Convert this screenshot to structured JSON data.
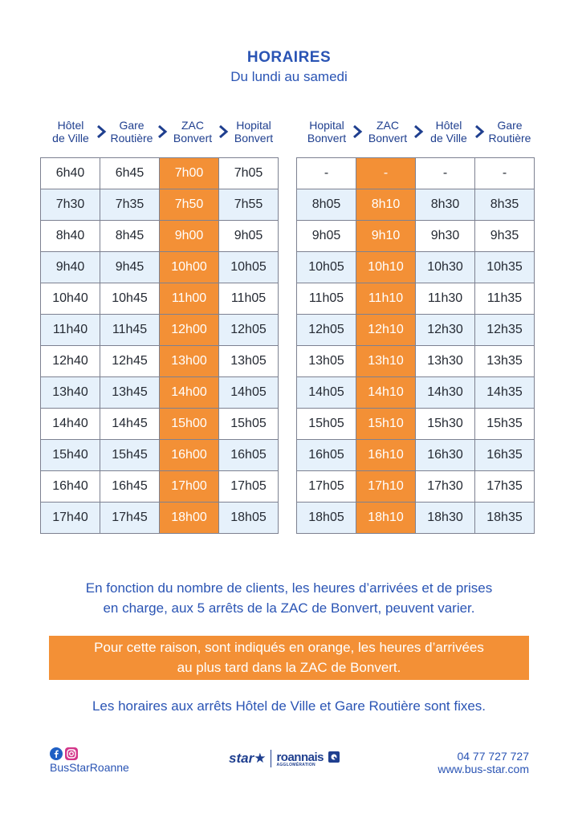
{
  "header": {
    "title": "HORAIRES",
    "subtitle": "Du lundi au samedi"
  },
  "left_table": {
    "stops": [
      [
        "Hôtel",
        "de Ville"
      ],
      [
        "Gare",
        "Routière"
      ],
      [
        "ZAC",
        "Bonvert"
      ],
      [
        "Hopital",
        "Bonvert"
      ]
    ],
    "rows": [
      [
        "6h40",
        "6h45",
        "7h00",
        "7h05"
      ],
      [
        "7h30",
        "7h35",
        "7h50",
        "7h55"
      ],
      [
        "8h40",
        "8h45",
        "9h00",
        "9h05"
      ],
      [
        "9h40",
        "9h45",
        "10h00",
        "10h05"
      ],
      [
        "10h40",
        "10h45",
        "11h00",
        "11h05"
      ],
      [
        "11h40",
        "11h45",
        "12h00",
        "12h05"
      ],
      [
        "12h40",
        "12h45",
        "13h00",
        "13h05"
      ],
      [
        "13h40",
        "13h45",
        "14h00",
        "14h05"
      ],
      [
        "14h40",
        "14h45",
        "15h00",
        "15h05"
      ],
      [
        "15h40",
        "15h45",
        "16h00",
        "16h05"
      ],
      [
        "16h40",
        "16h45",
        "17h00",
        "17h05"
      ],
      [
        "17h40",
        "17h45",
        "18h00",
        "18h05"
      ]
    ]
  },
  "right_table": {
    "stops": [
      [
        "Hopital",
        "Bonvert"
      ],
      [
        "ZAC",
        "Bonvert"
      ],
      [
        "Hôtel",
        "de Ville"
      ],
      [
        "Gare",
        "Routière"
      ]
    ],
    "rows": [
      [
        "-",
        "-",
        "-",
        "-"
      ],
      [
        "8h05",
        "8h10",
        "8h30",
        "8h35"
      ],
      [
        "9h05",
        "9h10",
        "9h30",
        "9h35"
      ],
      [
        "10h05",
        "10h10",
        "10h30",
        "10h35"
      ],
      [
        "11h05",
        "11h10",
        "11h30",
        "11h35"
      ],
      [
        "12h05",
        "12h10",
        "12h30",
        "12h35"
      ],
      [
        "13h05",
        "13h10",
        "13h30",
        "13h35"
      ],
      [
        "14h05",
        "14h10",
        "14h30",
        "14h35"
      ],
      [
        "15h05",
        "15h10",
        "15h30",
        "15h35"
      ],
      [
        "16h05",
        "16h10",
        "16h30",
        "16h35"
      ],
      [
        "17h05",
        "17h10",
        "17h30",
        "17h35"
      ],
      [
        "18h05",
        "18h10",
        "18h30",
        "18h35"
      ]
    ]
  },
  "notes": {
    "line1": "En fonction du nombre de clients, les heures d’arrivées et de prises",
    "line2": "en charge, aux 5 arrêts de la ZAC de Bonvert, peuvent varier.",
    "orange_line1": "Pour cette raison, sont indiqués en orange, les heures d’arrivées",
    "orange_line2": "au plus tard dans la ZAC de Bonvert.",
    "fixed": "Les horaires aux arrêts Hôtel de Ville et Gare Routière sont fixes."
  },
  "footer": {
    "social_handle": "BusStarRoanne",
    "logo_star": "star",
    "logo_roannais": "roannais",
    "logo_roannais_sub": "AGGLOMÉRATION",
    "phone": "04 77 727 727",
    "website": "www.bus-star.com",
    "icons": [
      "facebook-icon",
      "instagram-icon"
    ]
  },
  "colors": {
    "accent_blue": "#2a54b4",
    "highlight_orange": "#f39036",
    "row_alt": "#e6f1fb"
  }
}
